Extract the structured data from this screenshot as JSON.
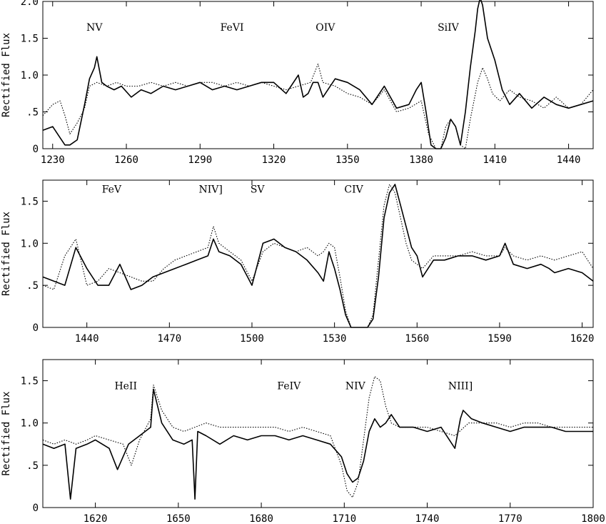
{
  "chart_data": [
    {
      "type": "line",
      "ylabel": "Rectified Flux",
      "xlim": [
        1226,
        1450
      ],
      "ylim": [
        0,
        2.0
      ],
      "xticks": [
        1230,
        1260,
        1290,
        1320,
        1350,
        1380,
        1410,
        1440
      ],
      "xtick_labels": [
        "1230",
        "1260",
        "1290",
        "1320",
        "1350",
        "1380",
        "1410",
        "1440"
      ],
      "yticks": [
        0,
        0.5,
        1.0,
        1.5,
        2.0
      ],
      "ytick_labels": [
        "0",
        ".5",
        "1.0",
        "1.5",
        "2.0"
      ],
      "line_labels": [
        {
          "text": "NV",
          "x": 1247,
          "y": 1.6
        },
        {
          "text": "FeVI",
          "x": 1303,
          "y": 1.6
        },
        {
          "text": "OIV",
          "x": 1341,
          "y": 1.6
        },
        {
          "text": "SiIV",
          "x": 1391,
          "y": 1.6
        }
      ],
      "series": [
        {
          "style": "solid",
          "x": [
            1226,
            1230,
            1233,
            1235,
            1237,
            1240,
            1243,
            1245,
            1247,
            1248,
            1250,
            1252,
            1255,
            1258,
            1262,
            1266,
            1270,
            1275,
            1280,
            1285,
            1290,
            1295,
            1300,
            1305,
            1310,
            1315,
            1320,
            1325,
            1330,
            1332,
            1334,
            1336,
            1338,
            1340,
            1345,
            1350,
            1355,
            1360,
            1365,
            1370,
            1375,
            1378,
            1380,
            1382,
            1384,
            1386,
            1388,
            1390,
            1392,
            1394,
            1396,
            1398,
            1400,
            1402,
            1403,
            1404,
            1405,
            1407,
            1410,
            1413,
            1416,
            1420,
            1425,
            1430,
            1435,
            1440,
            1445,
            1450
          ],
          "y": [
            0.25,
            0.3,
            0.15,
            0.05,
            0.05,
            0.12,
            0.6,
            0.95,
            1.1,
            1.25,
            0.9,
            0.85,
            0.8,
            0.85,
            0.7,
            0.8,
            0.75,
            0.85,
            0.8,
            0.85,
            0.9,
            0.8,
            0.85,
            0.8,
            0.85,
            0.9,
            0.9,
            0.75,
            1.0,
            0.7,
            0.75,
            0.9,
            0.9,
            0.7,
            0.95,
            0.9,
            0.8,
            0.6,
            0.85,
            0.55,
            0.6,
            0.8,
            0.9,
            0.5,
            0.05,
            0.0,
            0.0,
            0.15,
            0.4,
            0.3,
            0.05,
            0.5,
            1.1,
            1.6,
            1.9,
            2.05,
            1.95,
            1.5,
            1.2,
            0.8,
            0.6,
            0.75,
            0.55,
            0.7,
            0.6,
            0.55,
            0.6,
            0.65
          ]
        },
        {
          "style": "dotted",
          "x": [
            1226,
            1230,
            1233,
            1235,
            1237,
            1240,
            1243,
            1245,
            1248,
            1252,
            1256,
            1260,
            1265,
            1270,
            1275,
            1280,
            1285,
            1290,
            1295,
            1300,
            1305,
            1310,
            1315,
            1320,
            1325,
            1330,
            1335,
            1338,
            1340,
            1345,
            1350,
            1355,
            1360,
            1365,
            1370,
            1375,
            1380,
            1383,
            1386,
            1388,
            1390,
            1392,
            1394,
            1396,
            1398,
            1400,
            1403,
            1405,
            1407,
            1409,
            1412,
            1416,
            1420,
            1425,
            1430,
            1435,
            1440,
            1445,
            1450
          ],
          "y": [
            0.45,
            0.6,
            0.65,
            0.45,
            0.2,
            0.35,
            0.55,
            0.85,
            0.9,
            0.85,
            0.9,
            0.85,
            0.85,
            0.9,
            0.85,
            0.9,
            0.85,
            0.9,
            0.9,
            0.85,
            0.9,
            0.85,
            0.9,
            0.85,
            0.8,
            0.85,
            0.9,
            1.15,
            0.9,
            0.85,
            0.75,
            0.7,
            0.6,
            0.8,
            0.5,
            0.55,
            0.65,
            0.2,
            0.0,
            0.0,
            0.3,
            0.4,
            0.3,
            0.05,
            0.0,
            0.4,
            0.9,
            1.1,
            0.95,
            0.75,
            0.65,
            0.8,
            0.7,
            0.65,
            0.55,
            0.7,
            0.55,
            0.6,
            0.8
          ]
        }
      ]
    },
    {
      "type": "line",
      "ylabel": "Rectified Flux",
      "xlim": [
        1424,
        1624
      ],
      "ylim": [
        0,
        1.75
      ],
      "xticks": [
        1440,
        1470,
        1500,
        1530,
        1560,
        1590,
        1620
      ],
      "xtick_labels": [
        "1440",
        "1470",
        "1500",
        "1530",
        "1560",
        "1590",
        "1620"
      ],
      "yticks": [
        0,
        0.5,
        1.0,
        1.5
      ],
      "ytick_labels": [
        "0",
        ".5",
        "1.0",
        "1.5"
      ],
      "line_labels": [
        {
          "text": "FeV",
          "x": 1449,
          "y": 1.6
        },
        {
          "text": "NIV]",
          "x": 1485,
          "y": 1.6
        },
        {
          "text": "SV",
          "x": 1502,
          "y": 1.6
        },
        {
          "text": "CIV",
          "x": 1537,
          "y": 1.6
        }
      ],
      "series": [
        {
          "style": "solid",
          "x": [
            1424,
            1428,
            1432,
            1436,
            1440,
            1444,
            1448,
            1452,
            1456,
            1460,
            1464,
            1468,
            1472,
            1476,
            1480,
            1484,
            1486,
            1488,
            1492,
            1496,
            1500,
            1504,
            1508,
            1512,
            1516,
            1520,
            1524,
            1526,
            1528,
            1530,
            1532,
            1534,
            1536,
            1538,
            1540,
            1542,
            1544,
            1546,
            1548,
            1550,
            1552,
            1554,
            1556,
            1558,
            1560,
            1562,
            1566,
            1570,
            1575,
            1580,
            1585,
            1590,
            1592,
            1595,
            1600,
            1605,
            1608,
            1610,
            1615,
            1620,
            1624
          ],
          "y": [
            0.6,
            0.55,
            0.5,
            0.95,
            0.7,
            0.5,
            0.5,
            0.75,
            0.45,
            0.5,
            0.6,
            0.65,
            0.7,
            0.75,
            0.8,
            0.85,
            1.05,
            0.9,
            0.85,
            0.75,
            0.5,
            1.0,
            1.05,
            0.95,
            0.9,
            0.8,
            0.65,
            0.55,
            0.9,
            0.7,
            0.45,
            0.15,
            0.0,
            0.0,
            0.0,
            0.0,
            0.1,
            0.6,
            1.3,
            1.6,
            1.7,
            1.45,
            1.2,
            0.95,
            0.85,
            0.6,
            0.8,
            0.8,
            0.85,
            0.85,
            0.8,
            0.85,
            1.0,
            0.75,
            0.7,
            0.75,
            0.7,
            0.65,
            0.7,
            0.65,
            0.55
          ]
        },
        {
          "style": "dotted",
          "x": [
            1424,
            1428,
            1432,
            1436,
            1440,
            1444,
            1448,
            1452,
            1456,
            1460,
            1464,
            1468,
            1472,
            1476,
            1480,
            1484,
            1486,
            1488,
            1492,
            1496,
            1500,
            1504,
            1508,
            1512,
            1516,
            1520,
            1524,
            1526,
            1528,
            1530,
            1532,
            1534,
            1536,
            1538,
            1540,
            1542,
            1544,
            1546,
            1548,
            1550,
            1552,
            1554,
            1556,
            1558,
            1560,
            1562,
            1566,
            1570,
            1575,
            1580,
            1585,
            1590,
            1592,
            1595,
            1600,
            1605,
            1610,
            1615,
            1620,
            1624
          ],
          "y": [
            0.5,
            0.45,
            0.85,
            1.05,
            0.5,
            0.55,
            0.7,
            0.65,
            0.6,
            0.55,
            0.55,
            0.7,
            0.8,
            0.85,
            0.9,
            0.95,
            1.2,
            1.0,
            0.9,
            0.8,
            0.55,
            0.9,
            1.0,
            0.95,
            0.9,
            0.95,
            0.85,
            0.9,
            1.0,
            0.95,
            0.6,
            0.2,
            0.0,
            0.0,
            0.0,
            0.0,
            0.15,
            0.8,
            1.45,
            1.7,
            1.6,
            1.3,
            1.0,
            0.8,
            0.75,
            0.7,
            0.85,
            0.85,
            0.85,
            0.9,
            0.85,
            0.85,
            0.95,
            0.85,
            0.8,
            0.85,
            0.8,
            0.85,
            0.9,
            0.7
          ]
        }
      ]
    },
    {
      "type": "line",
      "ylabel": "Rectified Flux",
      "xlim": [
        1601,
        1800
      ],
      "ylim": [
        0,
        1.75
      ],
      "xticks": [
        1620,
        1650,
        1680,
        1710,
        1740,
        1770,
        1800
      ],
      "xtick_labels": [
        "1620",
        "1650",
        "1680",
        "1710",
        "1740",
        "1770",
        "1800"
      ],
      "yticks": [
        0,
        0.5,
        1.0,
        1.5
      ],
      "ytick_labels": [
        "0",
        ".5",
        "1.0",
        "1.5"
      ],
      "line_labels": [
        {
          "text": "HeII",
          "x": 1631,
          "y": 1.4
        },
        {
          "text": "FeIV",
          "x": 1690,
          "y": 1.4
        },
        {
          "text": "NIV",
          "x": 1714,
          "y": 1.4
        },
        {
          "text": "NIII]",
          "x": 1752,
          "y": 1.4
        }
      ],
      "series": [
        {
          "style": "solid",
          "x": [
            1601,
            1605,
            1609,
            1611,
            1613,
            1617,
            1620,
            1625,
            1628,
            1632,
            1636,
            1640,
            1641,
            1644,
            1648,
            1652,
            1655,
            1656,
            1657,
            1660,
            1665,
            1670,
            1675,
            1680,
            1685,
            1690,
            1695,
            1700,
            1705,
            1709,
            1711,
            1713,
            1715,
            1717,
            1719,
            1721,
            1723,
            1725,
            1727,
            1730,
            1735,
            1740,
            1745,
            1750,
            1752,
            1753,
            1756,
            1760,
            1765,
            1770,
            1775,
            1780,
            1785,
            1790,
            1795,
            1800
          ],
          "y": [
            0.75,
            0.7,
            0.75,
            0.1,
            0.7,
            0.75,
            0.8,
            0.7,
            0.45,
            0.75,
            0.85,
            0.95,
            1.4,
            1.0,
            0.8,
            0.75,
            0.8,
            0.1,
            0.9,
            0.85,
            0.75,
            0.85,
            0.8,
            0.85,
            0.85,
            0.8,
            0.85,
            0.8,
            0.75,
            0.6,
            0.4,
            0.3,
            0.35,
            0.55,
            0.9,
            1.05,
            0.95,
            1.0,
            1.1,
            0.95,
            0.95,
            0.9,
            0.95,
            0.7,
            1.05,
            1.15,
            1.05,
            1.0,
            0.95,
            0.9,
            0.95,
            0.95,
            0.95,
            0.9,
            0.9,
            0.9
          ]
        },
        {
          "style": "dotted",
          "x": [
            1601,
            1605,
            1609,
            1613,
            1617,
            1620,
            1625,
            1630,
            1633,
            1636,
            1640,
            1641,
            1644,
            1648,
            1652,
            1656,
            1660,
            1665,
            1670,
            1675,
            1680,
            1685,
            1690,
            1695,
            1700,
            1705,
            1709,
            1711,
            1713,
            1715,
            1717,
            1719,
            1721,
            1723,
            1725,
            1727,
            1730,
            1735,
            1740,
            1745,
            1750,
            1755,
            1760,
            1765,
            1770,
            1775,
            1780,
            1785,
            1790,
            1795,
            1800
          ],
          "y": [
            0.8,
            0.75,
            0.8,
            0.75,
            0.8,
            0.85,
            0.8,
            0.75,
            0.5,
            0.8,
            1.05,
            1.45,
            1.15,
            0.95,
            0.9,
            0.95,
            1.0,
            0.95,
            0.95,
            0.95,
            0.95,
            0.95,
            0.9,
            0.95,
            0.9,
            0.85,
            0.5,
            0.2,
            0.12,
            0.3,
            0.8,
            1.3,
            1.55,
            1.5,
            1.2,
            1.0,
            0.95,
            0.95,
            0.95,
            0.9,
            0.85,
            1.0,
            1.0,
            1.0,
            0.95,
            1.0,
            1.0,
            0.95,
            0.95,
            0.95,
            0.95
          ]
        }
      ]
    }
  ]
}
